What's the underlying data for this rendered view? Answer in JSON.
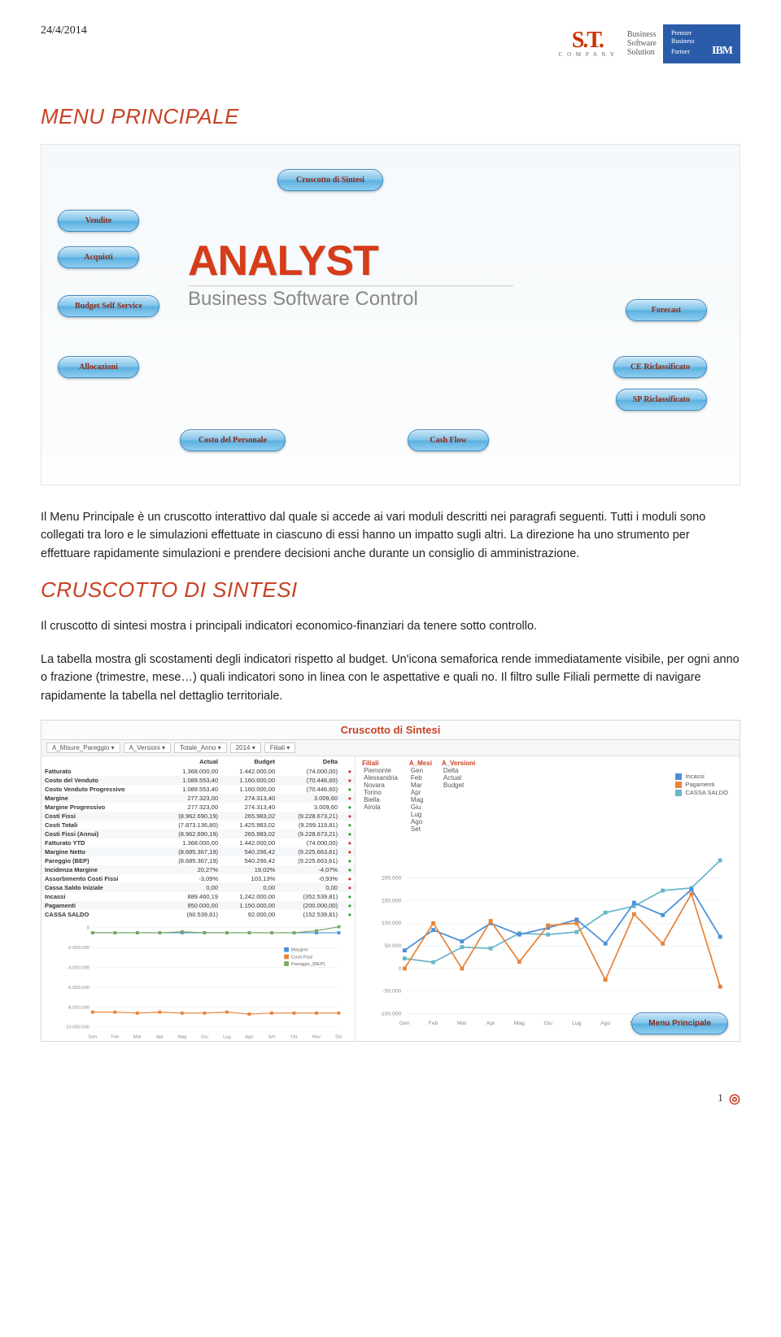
{
  "header": {
    "date": "24/4/2014",
    "logo_st": "S.T.",
    "logo_st_sub": "C O M P A N Y",
    "logo_bss_l1": "Business",
    "logo_bss_l2": "Software",
    "logo_bss_l3": "Solution",
    "logo_ibm_l1": "Premier",
    "logo_ibm_l2": "Business",
    "logo_ibm_l3": "Partner",
    "logo_ibm_brand": "IBM"
  },
  "section1": {
    "title": "MENU PRINCIPALE",
    "buttons": {
      "cruscotto": "Cruscotto di Sintesi",
      "vendite": "Vendite",
      "acquisti": "Acquisti",
      "budget_self": "Budget Self Service",
      "allocazioni": "Allocazioni",
      "costo_personale": "Costo del Personale",
      "cash_flow": "Cash Flow",
      "forecast": "Forecast",
      "ce_ricl": "CE Riclassificato",
      "sp_ricl": "SP Riclassificato"
    },
    "analyst_main": "ANALYST",
    "analyst_sub": "Business Software Control",
    "para": "Il Menu Principale è un cruscotto interattivo dal quale si accede ai vari moduli descritti nei paragrafi seguenti. Tutti i moduli sono collegati tra loro e le simulazioni effettuate in ciascuno di essi hanno un impatto sugli altri. La direzione ha uno strumento per effettuare rapidamente simulazioni e prendere decisioni anche durante un consiglio di amministrazione."
  },
  "section2": {
    "title": "CRUSCOTTO DI SINTESI",
    "para1": "Il cruscotto di sintesi mostra i principali indicatori economico-finanziari da tenere sotto controllo.",
    "para2": "La tabella mostra gli scostamenti degli indicatori rispetto al budget. Un'icona semaforica rende immediatamente visibile, per ogni anno o frazione (trimestre, mese…) quali indicatori sono in linea con le aspettative e quali no. Il filtro sulle Filiali permette di navigare rapidamente la tabella nel dettaglio territoriale."
  },
  "dashboard": {
    "title": "Cruscotto di Sintesi",
    "toolbar": [
      "A_Misure_Pareggio",
      "A_Versioni",
      "Totale_Anno",
      "2014",
      "Filiali"
    ],
    "filters": {
      "filiali_label": "Filiali",
      "filiali": [
        "Piemonte",
        "Alessandria",
        "Novara",
        "Torino",
        "Biella",
        "Airola"
      ],
      "mesi_label": "A_Mesi",
      "mesi": [
        "Gen",
        "Feb",
        "Mar",
        "Apr",
        "Mag",
        "Giu",
        "Lug",
        "Ago",
        "Set"
      ],
      "versioni_label": "A_Versioni",
      "versioni": [
        "Delta",
        "Actual",
        "Budget"
      ]
    },
    "table": {
      "columns": [
        "",
        "Actual",
        "Budget",
        "Delta"
      ],
      "rows": [
        [
          "Fatturato",
          "1.368.000,00",
          "1.442.000,00",
          "(74.000,00)"
        ],
        [
          "Costo del Venduto",
          "1.089.553,40",
          "1.160.000,00",
          "(70.446,60)"
        ],
        [
          "Costo Venduto Progressivo",
          "1.089.553,40",
          "1.160.000,00",
          "(70.446,60)"
        ],
        [
          "Margine",
          "277.323,00",
          "274.313,40",
          "3.009,60"
        ],
        [
          "Margine Progressivo",
          "277.323,00",
          "274.313,40",
          "3.009,60"
        ],
        [
          "Costi Fissi",
          "(8.962.690,19)",
          "265.983,02",
          "(9.228.673,21)"
        ],
        [
          "Costi Totali",
          "(7.873.136,80)",
          "1.425.983,02",
          "(9.299.119,81)"
        ],
        [
          "Costi Fissi (Annui)",
          "(8.962.690,19)",
          "265.983,02",
          "(9.228.673,21)"
        ],
        [
          "Fatturato YTD",
          "1.368.000,00",
          "1.442.000,00",
          "(74.000,00)"
        ],
        [
          "Margine Netto",
          "(8.685.367,19)",
          "540.296,42",
          "(9.225.663,61)"
        ],
        [
          "Pareggio (BEP)",
          "(8.685.367,19)",
          "540.296,42",
          "(9.225.663,61)"
        ],
        [
          "Incidenza Margine",
          "20,27%",
          "19,02%",
          "-4,07%"
        ],
        [
          "Assorbimento Costi Fissi",
          "-3,09%",
          "103,13%",
          "-0,93%"
        ],
        [
          "Cassa Saldo Iniziale",
          "0,00",
          "0,00",
          "0,00"
        ],
        [
          "Incassi",
          "889.460,19",
          "1.242.000,00",
          "(352.539,81)"
        ],
        [
          "Pagamenti",
          "950.000,00",
          "1.150.000,00",
          "(200.000,00)"
        ],
        [
          "CASSA SALDO",
          "(60.539,81)",
          "92.000,00",
          "(152.539,81)"
        ]
      ]
    },
    "mini_chart": {
      "y_ticks": [
        "0",
        "-2.000.000",
        "-4.000.000",
        "-6.000.000",
        "-8.000.000",
        "-10.000.000"
      ],
      "x_labels": [
        "Gen",
        "Feb",
        "Mar",
        "Apr",
        "Mag",
        "Giu",
        "Lug",
        "Ago",
        "Set",
        "Ott",
        "Nov",
        "Dic"
      ],
      "legend": [
        "Margine",
        "Costi Fissi",
        "Pareggio_(BEP)"
      ],
      "series_colors": [
        "#4a90d9",
        "#e8833a",
        "#7aa860"
      ],
      "blue_y": [
        5,
        5,
        5,
        5,
        5,
        5,
        5,
        5,
        5,
        5,
        5,
        5
      ],
      "green_y": [
        5,
        5,
        5,
        5,
        4,
        5,
        5,
        5,
        5,
        5,
        3,
        -1
      ],
      "orange_y": [
        85,
        85,
        86,
        85,
        86,
        86,
        85,
        87,
        86,
        86,
        86,
        86
      ]
    },
    "main_chart": {
      "y_ticks": [
        "200.000",
        "150.000",
        "100.000",
        "50.000",
        "0",
        "-50.000",
        "-100.000"
      ],
      "x_labels": [
        "Gen",
        "Feb",
        "Mar",
        "Apr",
        "Mag",
        "Giu",
        "Lug",
        "Ago",
        "Set",
        "Ott",
        "Nov",
        "Dic"
      ],
      "legend": [
        "Incassi",
        "Pagamenti",
        "CASSA SALDO"
      ],
      "series_colors": [
        "#4a90d9",
        "#e8833a",
        "#69b8c9"
      ],
      "incassi": [
        40,
        85,
        60,
        100,
        75,
        90,
        108,
        55,
        145,
        118,
        175,
        70
      ],
      "pagamenti": [
        0,
        100,
        0,
        105,
        15,
        95,
        100,
        -25,
        120,
        55,
        165,
        -40
      ],
      "cassa": [
        40,
        25,
        85,
        80,
        140,
        135,
        145,
        222,
        248,
        310,
        320,
        430
      ]
    },
    "main_legend": {
      "items": [
        "Incassi",
        "Pagamenti",
        "CASSA SALDO"
      ],
      "colors": [
        "#4a90d9",
        "#e8833a",
        "#69b8c9"
      ]
    },
    "menu_btn": "Menu Principale"
  },
  "footer": {
    "page": "1"
  },
  "colors": {
    "accent": "#c94125",
    "button_text": "#8b2a1a",
    "button_border": "#3a8ac5"
  }
}
